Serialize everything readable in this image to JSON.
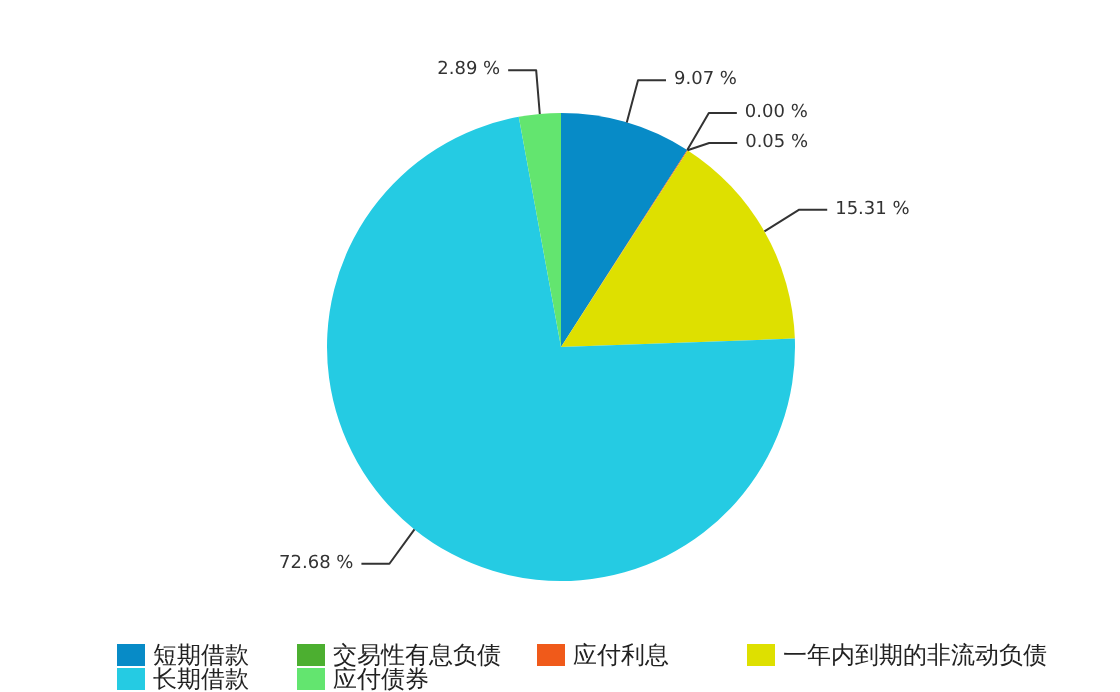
{
  "chart_data": {
    "type": "pie",
    "categories": [
      "短期借款",
      "交易性有息负债",
      "应付利息",
      "一年内到期的非流动负债",
      "长期借款",
      "应付债券"
    ],
    "values": [
      9.07,
      0.0,
      0.05,
      15.31,
      72.68,
      2.89
    ],
    "value_labels": [
      "9.07 %",
      "0.00 %",
      "0.05 %",
      "15.31 %",
      "72.68 %",
      "2.89 %"
    ],
    "colors": [
      "#078bc7",
      "#4caf30",
      "#f05a1a",
      "#dee000",
      "#25cbe3",
      "#63e56f"
    ],
    "legend": "bottom"
  }
}
